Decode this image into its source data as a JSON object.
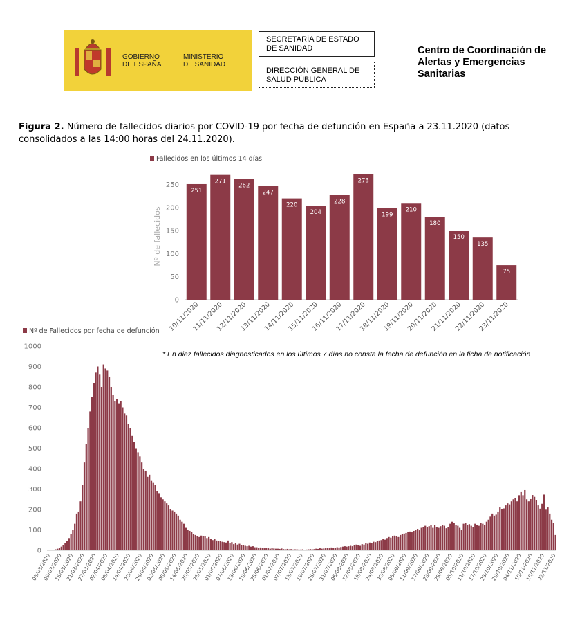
{
  "header": {
    "gov": "GOBIERNO\nDE ESPAÑA",
    "ministry": "MINISTERIO\nDE SANIDAD",
    "secretaria": "SECRETARÍA DE ESTADO\nDE SANIDAD",
    "direccion": "DIRECCIÓN GENERAL DE\nSALUD PÚBLICA",
    "centro": "Centro de Coordinación de\nAlertas y Emergencias\nSanitarias"
  },
  "caption": {
    "label": "Figura 2.",
    "text": "Número de fallecidos diarios por COVID-19 por fecha de defunción en España a 23.11.2020 (datos consolidados a las 14:00 horas del 24.11.2020)."
  },
  "chart_data": [
    {
      "type": "bar",
      "y_label": "Nº de fallecidos",
      "data_labels": true,
      "legend": "top-left",
      "categories": [
        "10/11/2020",
        "11/11/2020",
        "12/11/2020",
        "13/11/2020",
        "14/11/2020",
        "15/11/2020",
        "16/11/2020",
        "17/11/2020",
        "18/11/2020",
        "19/11/2020",
        "20/11/2020",
        "21/11/2020",
        "22/11/2020",
        "23/11/2020"
      ],
      "series": [
        {
          "name": "Fallecidos en los últimos 14 días",
          "color": "#8c3a47",
          "values": [
            251,
            271,
            262,
            247,
            220,
            204,
            228,
            273,
            199,
            210,
            180,
            150,
            135,
            75
          ]
        }
      ],
      "ylim": [
        0,
        275
      ],
      "yticks": [
        0,
        50,
        100,
        150,
        200,
        250
      ]
    },
    {
      "type": "bar",
      "data_labels": false,
      "legend": "top-left",
      "annotation": "* En diez fallecidos diagnosticados en los últimos 7 días no consta la fecha de defunción en la ficha de notificación",
      "categories": [
        "03/03/2020",
        null,
        null,
        null,
        null,
        null,
        "09/03/2020",
        null,
        null,
        null,
        null,
        null,
        "15/03/2020",
        null,
        null,
        null,
        null,
        null,
        "21/03/2020",
        null,
        null,
        null,
        null,
        null,
        "27/03/2020",
        null,
        null,
        null,
        null,
        null,
        "02/04/2020",
        null,
        null,
        null,
        null,
        null,
        "08/04/2020",
        null,
        null,
        null,
        null,
        null,
        "14/04/2020",
        null,
        null,
        null,
        null,
        null,
        "20/04/2020",
        null,
        null,
        null,
        null,
        null,
        "26/04/2020",
        null,
        null,
        null,
        null,
        null,
        "02/05/2020",
        null,
        null,
        null,
        null,
        null,
        "08/05/2020",
        null,
        null,
        null,
        null,
        null,
        "14/05/2020",
        null,
        null,
        null,
        null,
        null,
        "20/05/2020",
        null,
        null,
        null,
        null,
        null,
        "26/05/2020",
        null,
        null,
        null,
        null,
        null,
        "01/06/2020",
        null,
        null,
        null,
        null,
        null,
        "07/06/2020",
        null,
        null,
        null,
        null,
        null,
        "13/06/2020",
        null,
        null,
        null,
        null,
        null,
        "19/06/2020",
        null,
        null,
        null,
        null,
        null,
        "25/06/2020",
        null,
        null,
        null,
        null,
        null,
        "01/07/2020",
        null,
        null,
        null,
        null,
        null,
        "07/07/2020",
        null,
        null,
        null,
        null,
        null,
        "13/07/2020",
        null,
        null,
        null,
        null,
        null,
        "19/07/2020",
        null,
        null,
        null,
        null,
        null,
        "25/07/2020",
        null,
        null,
        null,
        null,
        null,
        "31/07/2020",
        null,
        null,
        null,
        null,
        null,
        "06/08/2020",
        null,
        null,
        null,
        null,
        null,
        "12/08/2020",
        null,
        null,
        null,
        null,
        null,
        "18/08/2020",
        null,
        null,
        null,
        null,
        null,
        "24/08/2020",
        null,
        null,
        null,
        null,
        null,
        "30/08/2020",
        null,
        null,
        null,
        null,
        null,
        "05/09/2020",
        null,
        null,
        null,
        null,
        null,
        "11/09/2020",
        null,
        null,
        null,
        null,
        null,
        "17/09/2020",
        null,
        null,
        null,
        null,
        null,
        "23/09/2020",
        null,
        null,
        null,
        null,
        null,
        "29/09/2020",
        null,
        null,
        null,
        null,
        null,
        "05/10/2020",
        null,
        null,
        null,
        null,
        null,
        "11/10/2020",
        null,
        null,
        null,
        null,
        null,
        "17/10/2020",
        null,
        null,
        null,
        null,
        null,
        "23/10/2020",
        null,
        null,
        null,
        null,
        null,
        "29/10/2020",
        null,
        null,
        null,
        null,
        null,
        "04/11/2020",
        null,
        null,
        null,
        null,
        null,
        "10/11/2020",
        null,
        null,
        null,
        null,
        null,
        "16/11/2020",
        null,
        null,
        null,
        null,
        null,
        "22/11/2020",
        null
      ],
      "series": [
        {
          "name": "Nº de Fallecidos por fecha de defunción",
          "color": "#8c3a47",
          "values": [
            1,
            1,
            2,
            3,
            5,
            8,
            12,
            18,
            25,
            35,
            45,
            60,
            80,
            100,
            130,
            180,
            190,
            240,
            320,
            430,
            520,
            600,
            680,
            750,
            820,
            870,
            900,
            860,
            800,
            910,
            890,
            880,
            850,
            800,
            760,
            730,
            740,
            720,
            730,
            700,
            670,
            660,
            620,
            600,
            560,
            530,
            500,
            480,
            460,
            430,
            400,
            390,
            360,
            370,
            340,
            330,
            320,
            290,
            280,
            260,
            250,
            240,
            230,
            220,
            200,
            195,
            190,
            180,
            170,
            150,
            140,
            130,
            110,
            100,
            95,
            90,
            80,
            75,
            70,
            65,
            72,
            68,
            70,
            60,
            65,
            55,
            50,
            55,
            48,
            45,
            45,
            42,
            40,
            38,
            48,
            35,
            40,
            30,
            35,
            28,
            32,
            25,
            25,
            22,
            20,
            22,
            18,
            20,
            15,
            15,
            12,
            14,
            12,
            10,
            12,
            10,
            8,
            10,
            9,
            8,
            8,
            7,
            9,
            6,
            5,
            7,
            5,
            6,
            4,
            5,
            5,
            4,
            4,
            5,
            3,
            4,
            5,
            6,
            5,
            6,
            8,
            7,
            10,
            8,
            9,
            10,
            12,
            10,
            14,
            12,
            12,
            15,
            14,
            16,
            18,
            20,
            18,
            20,
            22,
            20,
            25,
            28,
            25,
            22,
            30,
            28,
            35,
            32,
            38,
            35,
            42,
            40,
            45,
            48,
            50,
            55,
            52,
            60,
            65,
            62,
            68,
            72,
            70,
            65,
            75,
            80,
            82,
            85,
            90,
            92,
            88,
            95,
            100,
            105,
            98,
            110,
            115,
            120,
            112,
            118,
            122,
            110,
            125,
            115,
            110,
            118,
            125,
            120,
            108,
            115,
            130,
            140,
            135,
            125,
            120,
            110,
            100,
            130,
            135,
            125,
            128,
            120,
            115,
            130,
            125,
            120,
            135,
            130,
            125,
            140,
            150,
            165,
            180,
            170,
            175,
            190,
            210,
            200,
            205,
            220,
            230,
            225,
            240,
            250,
            255,
            240,
            270,
            285,
            270,
            295,
            250,
            240,
            251,
            271,
            262,
            247,
            220,
            204,
            228,
            273,
            199,
            210,
            180,
            150,
            135,
            75
          ]
        }
      ],
      "ylim": [
        0,
        1000
      ],
      "yticks": [
        0,
        100,
        200,
        300,
        400,
        500,
        600,
        700,
        800,
        900,
        1000
      ]
    }
  ]
}
